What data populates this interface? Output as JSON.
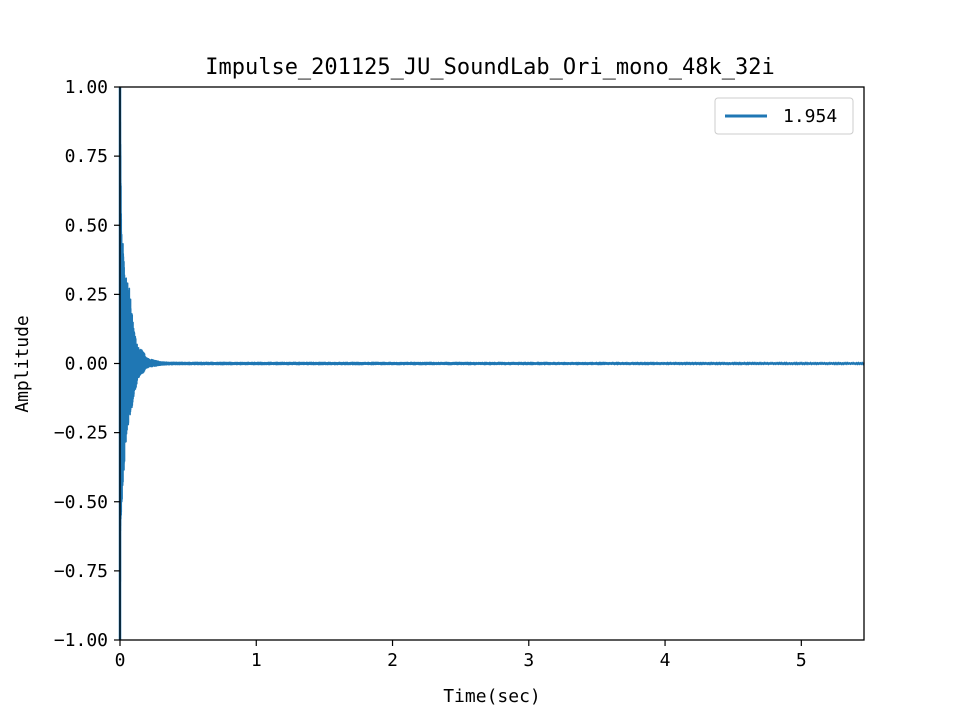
{
  "chart_data": {
    "type": "line",
    "title": "Impulse_201125_JU_SoundLab_Ori_mono_48k_32i",
    "xlabel": "Time(sec)",
    "ylabel": "Amplitude",
    "xlim": [
      0,
      5.46
    ],
    "ylim": [
      -1.0,
      1.0
    ],
    "xticks": [
      0,
      1,
      2,
      3,
      4,
      5
    ],
    "xtick_labels": [
      "0",
      "1",
      "2",
      "3",
      "4",
      "5"
    ],
    "yticks": [
      -1.0,
      -0.75,
      -0.5,
      -0.25,
      0.0,
      0.25,
      0.5,
      0.75,
      1.0
    ],
    "ytick_labels": [
      "−1.00",
      "−0.75",
      "−0.50",
      "−0.25",
      "0.00",
      "0.25",
      "0.50",
      "0.75",
      "1.00"
    ],
    "grid": false,
    "legend": {
      "position": "top-right",
      "entries": [
        "1.954"
      ]
    },
    "series": [
      {
        "name": "1.954",
        "color": "#1f77b4",
        "envelope": {
          "t": [
            0.0,
            0.005,
            0.01,
            0.02,
            0.03,
            0.04,
            0.05,
            0.07,
            0.1,
            0.13,
            0.16,
            0.2,
            0.25,
            0.3,
            0.4,
            5.46
          ],
          "max": [
            1.0,
            0.75,
            0.5,
            0.45,
            0.36,
            0.33,
            0.3,
            0.27,
            0.13,
            0.06,
            0.05,
            0.02,
            0.012,
            0.006,
            0.004,
            0.004
          ],
          "min": [
            -1.0,
            -0.6,
            -0.55,
            -0.45,
            -0.38,
            -0.32,
            -0.25,
            -0.2,
            -0.13,
            -0.06,
            -0.04,
            -0.015,
            -0.01,
            -0.006,
            -0.004,
            -0.004
          ]
        }
      }
    ]
  }
}
